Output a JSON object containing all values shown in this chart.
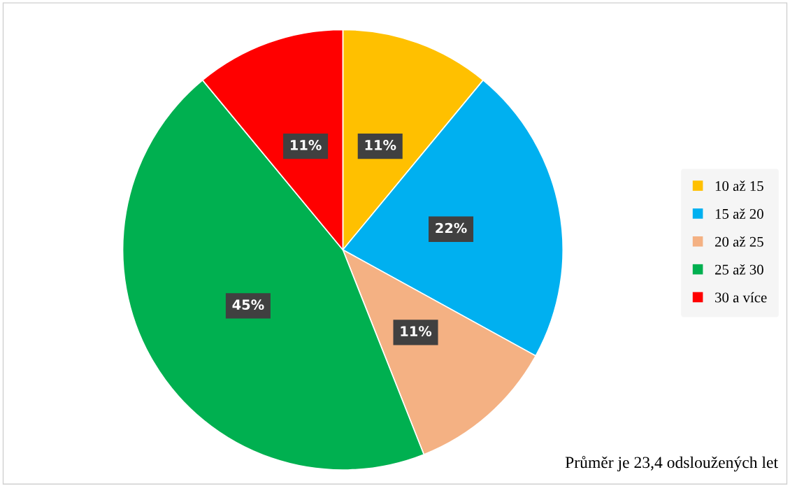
{
  "chart_data": {
    "type": "pie",
    "categories": [
      "10 až 15",
      "15 až 20",
      "20 až 25",
      "25 až 30",
      "30 a více"
    ],
    "values": [
      11,
      22,
      11,
      45,
      11
    ],
    "colors": [
      "#ffc000",
      "#00b0f0",
      "#f4b183",
      "#00b050",
      "#ff0000"
    ],
    "value_labels": [
      "11%",
      "22%",
      "11%",
      "45%",
      "11%"
    ],
    "legend": "right",
    "annotations": [
      "Průměr je 23,4 odsloužených let"
    ]
  }
}
